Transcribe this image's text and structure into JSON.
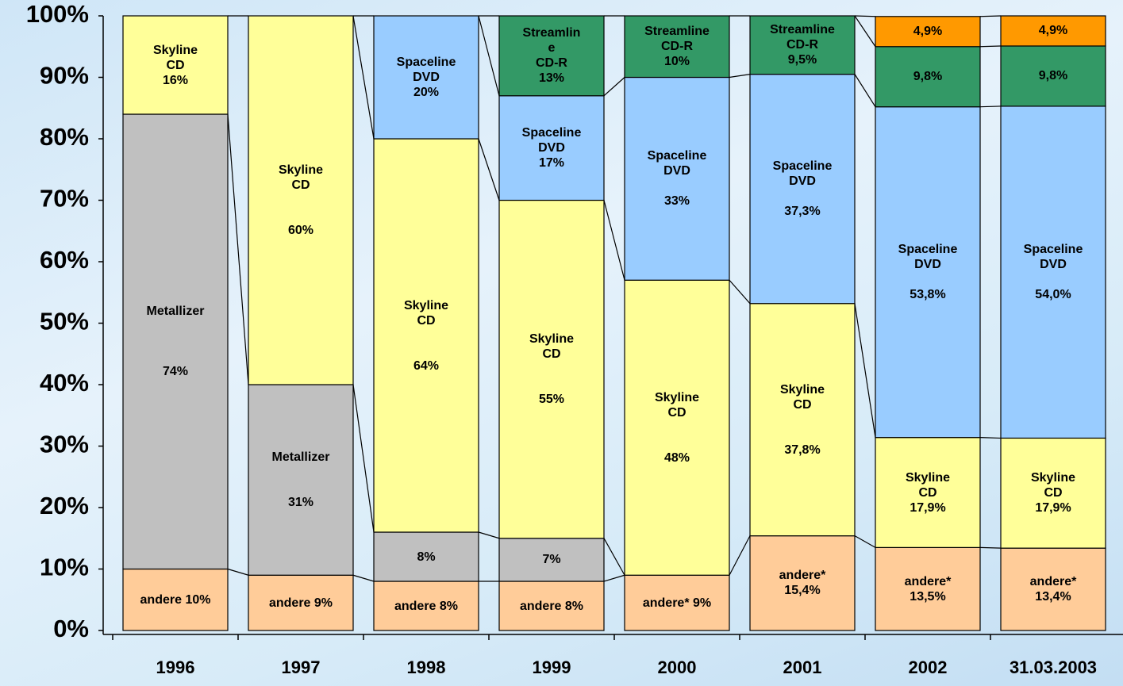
{
  "chart_data": {
    "type": "stacked_bar_100",
    "categories": [
      "1996",
      "1997",
      "1998",
      "1999",
      "2000",
      "2001",
      "2002",
      "31.03.2003"
    ],
    "ylim": [
      0,
      100
    ],
    "yticks": [
      {
        "value": 0,
        "label": "0%"
      },
      {
        "value": 10,
        "label": "10%"
      },
      {
        "value": 20,
        "label": "20%"
      },
      {
        "value": 30,
        "label": "30%"
      },
      {
        "value": 40,
        "label": "40%"
      },
      {
        "value": 50,
        "label": "50%"
      },
      {
        "value": 60,
        "label": "60%"
      },
      {
        "value": 70,
        "label": "70%"
      },
      {
        "value": 80,
        "label": "80%"
      },
      {
        "value": 90,
        "label": "90%"
      },
      {
        "value": 100,
        "label": "100%"
      }
    ],
    "series": [
      {
        "name": "andere",
        "color": "#ffcc99",
        "values": [
          10,
          9,
          8,
          8,
          9,
          15.4,
          13.5,
          13.4
        ],
        "value_labels": [
          "andere 10%",
          "andere 9%",
          "andere 8%",
          "andere 8%",
          "andere* 9%",
          "andere*\n15,4%",
          "andere*\n13,5%",
          "andere*\n13,4%"
        ]
      },
      {
        "name": "Metallizer",
        "color": "#c0c0c0",
        "values": [
          74,
          31,
          8,
          7,
          null,
          null,
          null,
          null
        ],
        "value_labels": [
          "Metallizer\n\n\n\n74%",
          "Metallizer\n\n\n31%",
          "8%",
          "7%",
          null,
          null,
          null,
          null
        ]
      },
      {
        "name": "Skyline CD",
        "color": "#ffff99",
        "values": [
          16,
          60,
          64,
          55,
          48,
          37.8,
          17.9,
          17.9
        ],
        "value_labels": [
          "Skyline\nCD\n16%",
          "Skyline\nCD\n\n\n60%",
          "Skyline\nCD\n\n\n64%",
          "Skyline\nCD\n\n\n55%",
          "Skyline\nCD\n\n\n48%",
          "Skyline\nCD\n\n\n37,8%",
          "Skyline\nCD\n17,9%",
          "Skyline\nCD\n17,9%"
        ]
      },
      {
        "name": "Spaceline DVD",
        "color": "#99ccff",
        "values": [
          null,
          null,
          20,
          17,
          33,
          37.3,
          53.8,
          54.0
        ],
        "value_labels": [
          null,
          null,
          "Spaceline\nDVD\n20%",
          "Spaceline\nDVD\n17%",
          "Spaceline\nDVD\n\n33%",
          "Spaceline\nDVD\n\n37,3%",
          "Spaceline\nDVD\n\n53,8%",
          "Spaceline\nDVD\n\n54,0%"
        ]
      },
      {
        "name": "Streamline CD-R",
        "color": "#339966",
        "values": [
          null,
          null,
          null,
          13,
          10,
          9.5,
          9.8,
          9.8
        ],
        "value_labels": [
          null,
          null,
          null,
          "Streamlin\ne\nCD-R\n13%",
          "Streamline\nCD-R\n10%",
          "Streamline\nCD-R\n9,5%",
          "9,8%",
          "9,8%"
        ]
      },
      {
        "color": "#ff9900",
        "values": [
          null,
          null,
          null,
          null,
          null,
          null,
          4.9,
          4.9
        ],
        "value_labels": [
          null,
          null,
          null,
          null,
          null,
          null,
          "4,9%",
          "4,9%"
        ]
      }
    ]
  }
}
